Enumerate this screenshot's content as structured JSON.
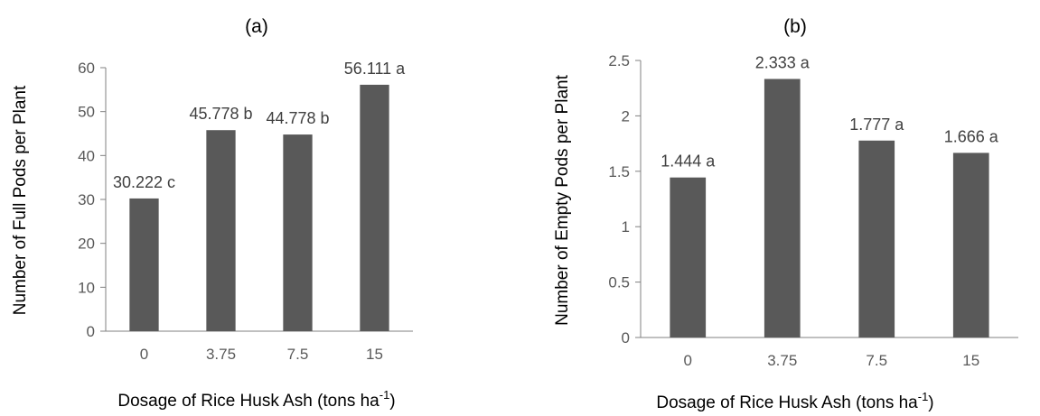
{
  "chart_data": [
    {
      "type": "bar",
      "title": "(a)",
      "ylabel": "Number of Full Pods per Plant",
      "xlabel": "Dosage of Rice Husk Ash (tons ha",
      "xlabel_sup": "-1",
      "xlabel_end": ")",
      "categories": [
        "0",
        "3.75",
        "7.5",
        "15"
      ],
      "values": [
        30.222,
        45.778,
        44.778,
        56.111
      ],
      "data_labels": [
        "30.222 c",
        "45.778 b",
        "44.778 b",
        "56.111 a"
      ],
      "ylim": [
        0,
        60
      ],
      "yticks": [
        "0",
        "10",
        "20",
        "30",
        "40",
        "50",
        "60"
      ],
      "bar_color": "#5f5f5f",
      "grid": false
    },
    {
      "type": "bar",
      "title": "(b)",
      "ylabel": "Number of Empty Pods per Plant",
      "xlabel": "Dosage of Rice Husk Ash (tons ha",
      "xlabel_sup": "-1",
      "xlabel_end": ")",
      "categories": [
        "0",
        "3.75",
        "7.5",
        "15"
      ],
      "values": [
        1.444,
        2.333,
        1.777,
        1.666
      ],
      "data_labels": [
        "1.444 a",
        "2.333 a",
        "1.777 a",
        "1.666 a"
      ],
      "ylim": [
        0,
        2.5
      ],
      "yticks": [
        "0",
        "0.5",
        "1",
        "1.5",
        "2",
        "2.5"
      ],
      "bar_color": "#5f5f5f",
      "grid": false
    }
  ]
}
